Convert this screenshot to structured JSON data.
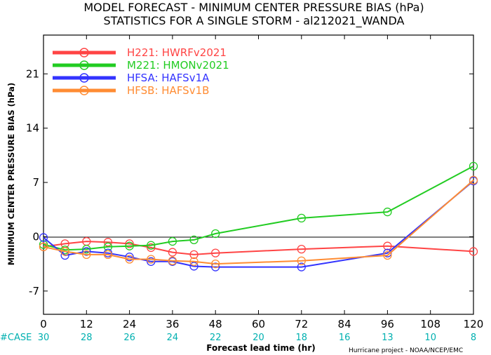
{
  "title_line1": "MODEL FORECAST - MINIMUM CENTER PRESSURE BIAS (hPa)",
  "title_line2": "STATISTICS FOR A SINGLE STORM - al212021_WANDA",
  "credit": "Hurricane project - NOAA/NCEP/EMC",
  "case_label": "#CASE",
  "case_counts": [
    "30",
    "28",
    "26",
    "24",
    "22",
    "20",
    "18",
    "16",
    "13",
    "10",
    "8"
  ],
  "colors": {
    "case": "#00b0b0",
    "zero_line": "#000000",
    "axes": "#000000"
  },
  "chart_data": {
    "type": "line",
    "title": "MODEL FORECAST - MINIMUM CENTER PRESSURE BIAS (hPa)",
    "subtitle": "STATISTICS FOR A SINGLE STORM - al212021_WANDA",
    "xlabel": "Forecast lead time (hr)",
    "ylabel": "MINIMUM CENTER PRESSURE BIAS (hPa)",
    "xlim": [
      0,
      120
    ],
    "ylim": [
      -10,
      26
    ],
    "xticks": [
      0,
      12,
      24,
      36,
      48,
      60,
      72,
      84,
      96,
      108,
      120
    ],
    "yticks": [
      -7,
      0,
      7,
      14,
      21
    ],
    "grid": false,
    "legend_position": "top-left",
    "series": [
      {
        "name": "H221: HWRFv2021",
        "color": "#ff4444",
        "x": [
          0,
          6,
          12,
          18,
          24,
          30,
          36,
          42,
          48,
          72,
          96,
          120
        ],
        "y": [
          -1.3,
          -0.9,
          -0.6,
          -0.7,
          -0.9,
          -1.4,
          -2.0,
          -2.3,
          -2.1,
          -1.6,
          -1.2,
          -1.9
        ]
      },
      {
        "name": "M221: HMONv2021",
        "color": "#22cc22",
        "x": [
          0,
          6,
          12,
          18,
          24,
          30,
          36,
          42,
          48,
          72,
          96,
          120
        ],
        "y": [
          -1.0,
          -1.7,
          -1.6,
          -1.3,
          -1.2,
          -1.1,
          -0.6,
          -0.4,
          0.4,
          2.4,
          3.2,
          9.1
        ]
      },
      {
        "name": "HFSA: HAFSv1A",
        "color": "#3333ff",
        "x": [
          0,
          6,
          12,
          18,
          24,
          30,
          36,
          42,
          48,
          72,
          96,
          120
        ],
        "y": [
          -0.1,
          -2.4,
          -1.9,
          -2.1,
          -2.6,
          -3.2,
          -3.2,
          -3.8,
          -3.9,
          -3.9,
          -2.1,
          7.2
        ]
      },
      {
        "name": "HFSB: HAFSv1B",
        "color": "#ff8c33",
        "x": [
          0,
          6,
          12,
          18,
          24,
          30,
          36,
          42,
          48,
          72,
          96,
          120
        ],
        "y": [
          -1.3,
          -1.9,
          -2.3,
          -2.3,
          -2.9,
          -2.9,
          -3.1,
          -3.2,
          -3.5,
          -3.1,
          -2.4,
          7.3
        ]
      }
    ]
  }
}
